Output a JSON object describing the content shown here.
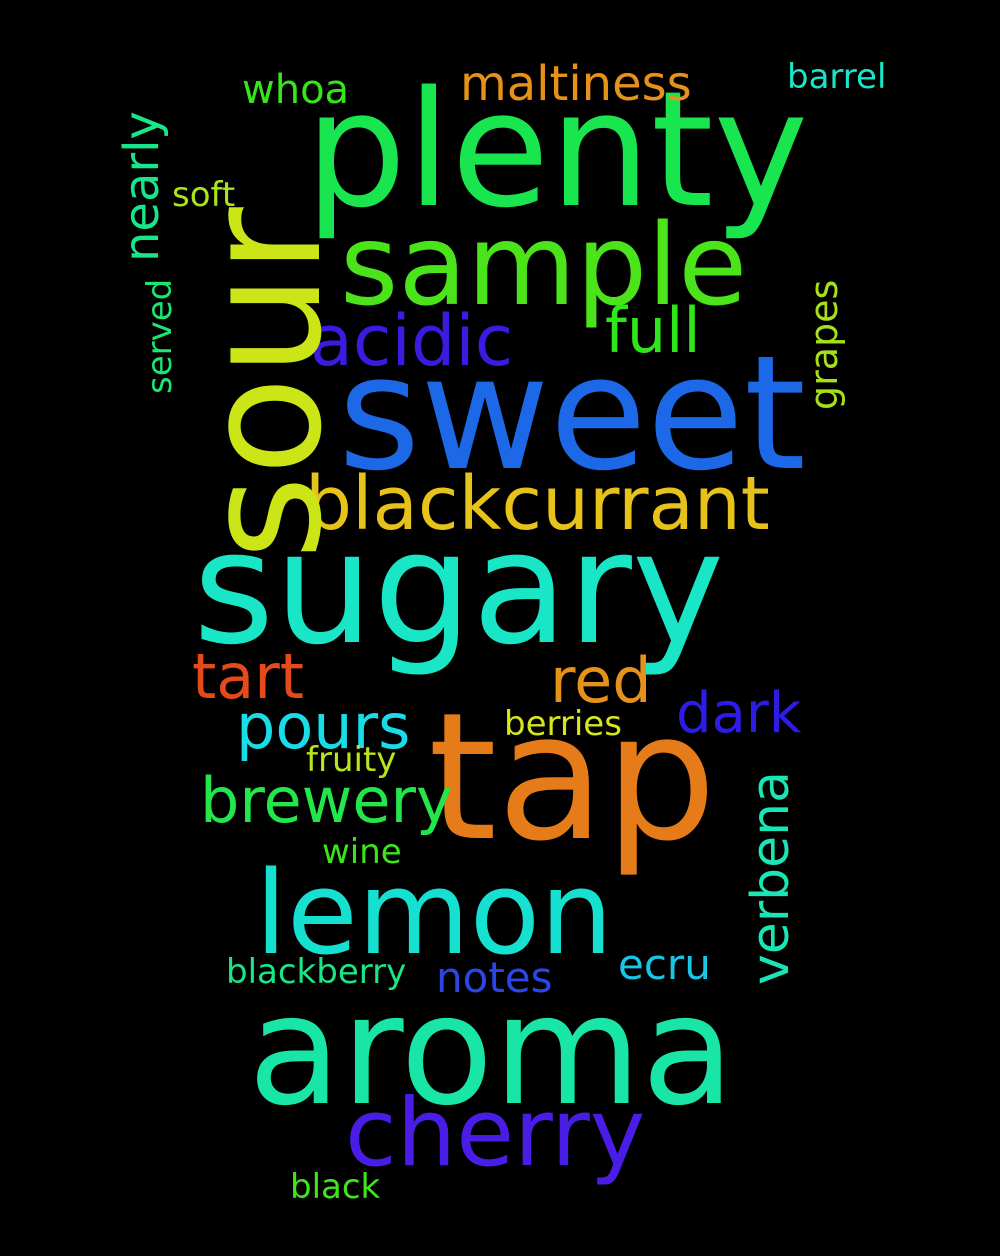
{
  "background_color": "#000000",
  "words": {
    "plenty": {
      "text": "plenty",
      "color": "#19e64f"
    },
    "sour": {
      "text": "sour",
      "color": "#cbe516"
    },
    "sample": {
      "text": "sample",
      "color": "#4be31a"
    },
    "sweet": {
      "text": "sweet",
      "color": "#1c68e6"
    },
    "sugary": {
      "text": "sugary",
      "color": "#19e6c6"
    },
    "tap": {
      "text": "tap",
      "color": "#e67c19"
    },
    "lemon": {
      "text": "lemon",
      "color": "#16e0d0"
    },
    "aroma": {
      "text": "aroma",
      "color": "#19e6a6"
    },
    "cherry": {
      "text": "cherry",
      "color": "#4a1de6"
    },
    "blackcurrant": {
      "text": "blackcurrant",
      "color": "#e6c21a"
    },
    "acidic": {
      "text": "acidic",
      "color": "#3a1be0"
    },
    "full": {
      "text": "full",
      "color": "#2fe619"
    },
    "maltiness": {
      "text": "maltiness",
      "color": "#e6921a"
    },
    "whoa": {
      "text": "whoa",
      "color": "#37e61a"
    },
    "barrel": {
      "text": "barrel",
      "color": "#19e6c8"
    },
    "soft": {
      "text": "soft",
      "color": "#a8e61a"
    },
    "nearly": {
      "text": "nearly",
      "color": "#19e68a"
    },
    "served": {
      "text": "served",
      "color": "#1ae670"
    },
    "grapes": {
      "text": "grapes",
      "color": "#a6e019"
    },
    "tart": {
      "text": "tart",
      "color": "#e64a1a"
    },
    "red": {
      "text": "red",
      "color": "#e6911a"
    },
    "dark": {
      "text": "dark",
      "color": "#2c1ce6"
    },
    "pours": {
      "text": "pours",
      "color": "#19dce6"
    },
    "berries": {
      "text": "berries",
      "color": "#d6e61a"
    },
    "fruity": {
      "text": "fruity",
      "color": "#b8e61a"
    },
    "brewery": {
      "text": "brewery",
      "color": "#22e64a"
    },
    "verbena": {
      "text": "verbena",
      "color": "#19e6b4"
    },
    "wine": {
      "text": "wine",
      "color": "#3ae61a"
    },
    "blackberry": {
      "text": "blackberry",
      "color": "#19e684"
    },
    "notes": {
      "text": "notes",
      "color": "#2a46e6"
    },
    "ecru": {
      "text": "ecru",
      "color": "#19c6e6"
    },
    "black": {
      "text": "black",
      "color": "#3ee61a"
    }
  }
}
